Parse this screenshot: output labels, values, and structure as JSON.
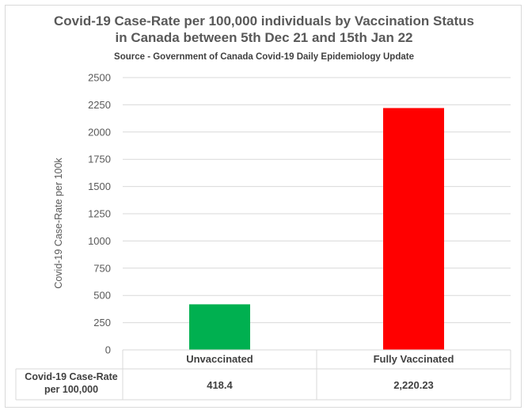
{
  "chart_data": {
    "type": "bar",
    "title_line1": "Covid-19 Case-Rate per 100,000 individuals by Vaccination Status",
    "title_line2": "in Canada between 5th Dec 21 and 15th Jan 22",
    "subtitle": "Source - Government of Canada Covid-19 Daily Epidemiology Update",
    "ylabel": "Covid-19 Case-Rate per 100k",
    "xlabel": "",
    "ylim": [
      0,
      2500
    ],
    "yticks": [
      0,
      250,
      500,
      750,
      1000,
      1250,
      1500,
      1750,
      2000,
      2250,
      2500
    ],
    "categories": [
      "Unvaccinated",
      "Fully Vaccinated"
    ],
    "values": [
      418.4,
      2220.23
    ],
    "colors": [
      "#00b050",
      "#ff0000"
    ],
    "grid": true,
    "table": {
      "row_label": "Covid-19 Case-Rate per 100,000",
      "cells": [
        "418.4",
        "2,220.23"
      ]
    }
  }
}
